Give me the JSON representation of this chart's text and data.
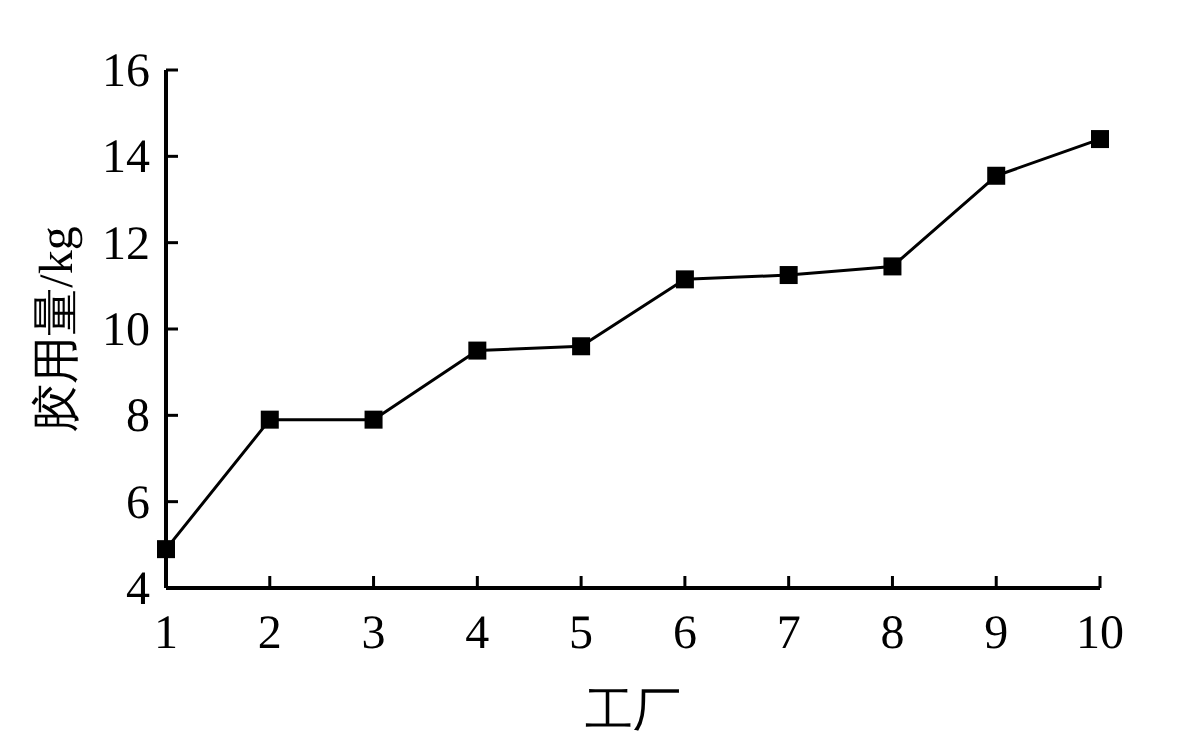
{
  "chart_data": {
    "type": "line",
    "xlabel": "工厂",
    "ylabel": "胶用量/kg",
    "x": [
      1,
      2,
      3,
      4,
      5,
      6,
      7,
      8,
      9,
      10
    ],
    "series": [
      {
        "color": "#000000",
        "values": [
          4.9,
          7.9,
          7.9,
          9.5,
          9.6,
          11.15,
          11.25,
          11.45,
          13.55,
          14.4
        ]
      }
    ],
    "xlim": [
      1,
      10
    ],
    "xticks": [
      1,
      2,
      3,
      4,
      5,
      6,
      7,
      8,
      9,
      10
    ],
    "ylim": [
      4,
      16
    ],
    "yticks": [
      4,
      6,
      8,
      10,
      12,
      14,
      16
    ],
    "marker": "square",
    "line_style": "solid",
    "grid": false
  }
}
